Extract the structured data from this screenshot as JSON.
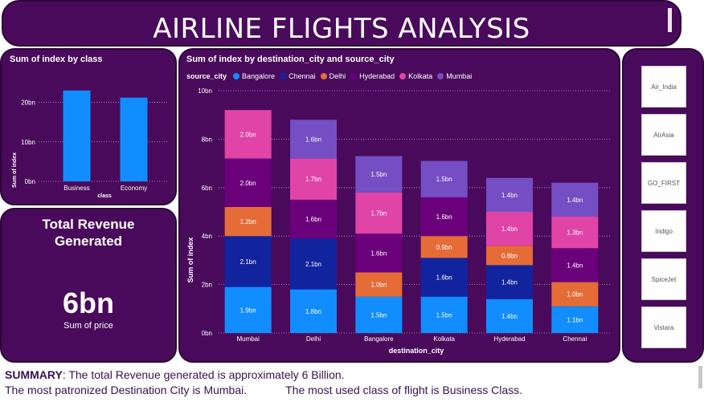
{
  "title": "AIRLINE FLIGHTS ANALYSIS",
  "class_chart": {
    "title": "Sum of index by class",
    "chart_data": {
      "type": "bar",
      "categories": [
        "Business",
        "Economy"
      ],
      "values": [
        23,
        21.2
      ],
      "xlabel": "class",
      "ylabel": "Sum of index",
      "yticks": [
        "0bn",
        "10bn",
        "20bn"
      ],
      "ylim": [
        0,
        26
      ],
      "color": "#118dff",
      "grid": true
    }
  },
  "revenue_card": {
    "title_line1": "Total Revenue",
    "title_line2": "Generated",
    "value": "6bn",
    "subtitle": "Sum of price"
  },
  "destination_chart": {
    "title": "Sum of index by destination_city and source_city",
    "legend_title": "source_city",
    "chart_data": {
      "type": "bar",
      "stacked": true,
      "categories": [
        "Mumbai",
        "Delhi",
        "Bangalore",
        "Kolkata",
        "Hyderabad",
        "Chennai"
      ],
      "xlabel": "destination_city",
      "ylabel": "Sum of index",
      "yticks": [
        "0bn",
        "2bn",
        "4bn",
        "6bn",
        "8bn",
        "10bn"
      ],
      "ylim": [
        0,
        10
      ],
      "grid": true,
      "legend_position": "top-left",
      "series": [
        {
          "name": "Bangalore",
          "color": "#118dff",
          "values": [
            1.9,
            1.8,
            1.5,
            1.5,
            1.4,
            1.1
          ],
          "labels": [
            "1.9bn",
            "1.8bn",
            "1.5bn",
            "1.5bn",
            "1.4bn",
            "1.1bn"
          ]
        },
        {
          "name": "Chennai",
          "color": "#12239e",
          "values": [
            2.1,
            2.1,
            0,
            1.6,
            1.4,
            0
          ],
          "labels": [
            "2.1bn",
            "2.1bn",
            "",
            "1.6bn",
            "1.4bn",
            ""
          ]
        },
        {
          "name": "Delhi",
          "color": "#e66c37",
          "values": [
            1.2,
            0,
            1.0,
            0.9,
            0.8,
            1.0
          ],
          "labels": [
            "1.2bn",
            "",
            "1.0bn",
            "0.9bn",
            "0.8bn",
            "1.0bn"
          ]
        },
        {
          "name": "Hyderabad",
          "color": "#6b007b",
          "values": [
            2.0,
            1.6,
            1.6,
            1.6,
            0,
            1.4
          ],
          "labels": [
            "2.0bn",
            "1.6bn",
            "1.6bn",
            "1.6bn",
            "",
            "1.4bn"
          ]
        },
        {
          "name": "Kolkata",
          "color": "#e044a7",
          "values": [
            2.0,
            1.7,
            1.7,
            0,
            1.4,
            1.3
          ],
          "labels": [
            "2.0bn",
            "1.7bn",
            "1.7bn",
            "",
            "1.4bn",
            "1.3bn"
          ]
        },
        {
          "name": "Mumbai",
          "color": "#744ec2",
          "values": [
            0,
            1.6,
            1.5,
            1.5,
            1.4,
            1.4
          ],
          "labels": [
            "",
            "1.6bn",
            "1.5bn",
            "1.5bn",
            "1.4bn",
            "1.4bn"
          ]
        }
      ]
    }
  },
  "slicer": {
    "items": [
      "Air_India",
      "AirAsia",
      "GO_FIRST",
      "Indigo",
      "SpiceJet",
      "Vistara"
    ]
  },
  "summary": {
    "label": "SUMMARY",
    "line1": ": The total Revenue generated is approximately 6 Billion.",
    "line2a": "The most patronized Destination City is Mumbai.",
    "line2b": "The most used class of flight is Business Class."
  }
}
